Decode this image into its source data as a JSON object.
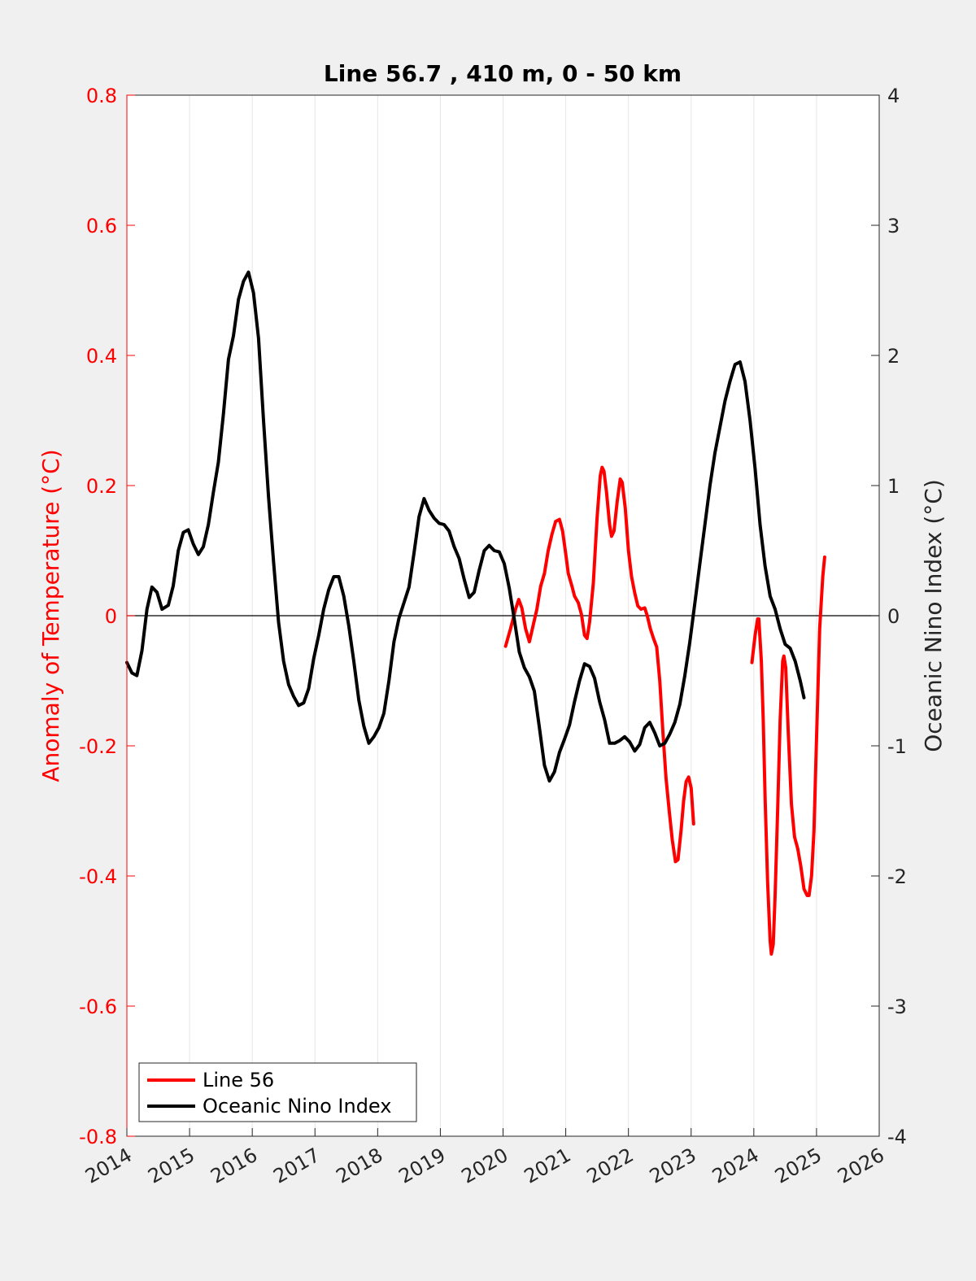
{
  "colors": {
    "figure_background": "#f0f0f0",
    "axes_background": "#ffffff",
    "line56": "#ff0000",
    "oni": "#000000",
    "left_axis": "#ff0000",
    "right_axis": "#262626",
    "grid": "#e6e6e6"
  },
  "chart_data": {
    "type": "line",
    "title": "Line 56.7 , 410 m, 0 - 50 km",
    "xlabel": "",
    "ylabel_left": "Anomaly of Temperature (°C)",
    "ylabel_right": "Oceanic Nino Index (°C)",
    "xlim": [
      2014,
      2026
    ],
    "ylim_left": [
      -0.8,
      0.8
    ],
    "ylim_right": [
      -4,
      4
    ],
    "x_ticks": [
      2014,
      2015,
      2016,
      2017,
      2018,
      2019,
      2020,
      2021,
      2022,
      2023,
      2024,
      2025,
      2026
    ],
    "y_ticks_left": [
      "0.8",
      "0.6",
      "0.4",
      "0.2",
      "0",
      "-0.2",
      "-0.4",
      "-0.6",
      "-0.8"
    ],
    "y_ticks_right": [
      "4",
      "3",
      "2",
      "1",
      "0",
      "-1",
      "-2",
      "-3",
      "-4"
    ],
    "vertical_grid": true,
    "zero_line": true,
    "legend": {
      "placement": "bottom-left",
      "entries": [
        "Line 56",
        "Oceanic Nino Index"
      ]
    },
    "series": [
      {
        "name": "Line 56",
        "axis": "left",
        "color": "#ff0000",
        "segments": [
          [
            [
              2020.04,
              -0.047
            ],
            [
              2020.12,
              -0.02
            ],
            [
              2020.2,
              0.01
            ],
            [
              2020.25,
              0.025
            ],
            [
              2020.3,
              0.012
            ],
            [
              2020.36,
              -0.02
            ],
            [
              2020.42,
              -0.04
            ],
            [
              2020.48,
              -0.015
            ],
            [
              2020.54,
              0.01
            ],
            [
              2020.6,
              0.045
            ],
            [
              2020.66,
              0.065
            ],
            [
              2020.72,
              0.1
            ],
            [
              2020.78,
              0.125
            ],
            [
              2020.84,
              0.145
            ],
            [
              2020.9,
              0.148
            ],
            [
              2020.95,
              0.13
            ],
            [
              2021.0,
              0.095
            ],
            [
              2021.04,
              0.065
            ],
            [
              2021.1,
              0.045
            ],
            [
              2021.14,
              0.03
            ],
            [
              2021.2,
              0.02
            ],
            [
              2021.25,
              0.002
            ],
            [
              2021.3,
              -0.03
            ],
            [
              2021.34,
              -0.035
            ],
            [
              2021.38,
              -0.01
            ],
            [
              2021.44,
              0.05
            ],
            [
              2021.5,
              0.15
            ],
            [
              2021.55,
              0.215
            ],
            [
              2021.58,
              0.228
            ],
            [
              2021.61,
              0.222
            ],
            [
              2021.65,
              0.19
            ],
            [
              2021.7,
              0.14
            ],
            [
              2021.73,
              0.122
            ],
            [
              2021.77,
              0.13
            ],
            [
              2021.82,
              0.175
            ],
            [
              2021.87,
              0.21
            ],
            [
              2021.9,
              0.205
            ],
            [
              2021.95,
              0.165
            ],
            [
              2022.0,
              0.1
            ],
            [
              2022.05,
              0.06
            ],
            [
              2022.1,
              0.035
            ],
            [
              2022.15,
              0.015
            ],
            [
              2022.2,
              0.01
            ],
            [
              2022.26,
              0.012
            ],
            [
              2022.3,
              0.0
            ],
            [
              2022.35,
              -0.02
            ],
            [
              2022.4,
              -0.035
            ],
            [
              2022.45,
              -0.048
            ],
            [
              2022.5,
              -0.1
            ],
            [
              2022.55,
              -0.18
            ],
            [
              2022.6,
              -0.25
            ],
            [
              2022.65,
              -0.3
            ],
            [
              2022.7,
              -0.345
            ],
            [
              2022.75,
              -0.378
            ],
            [
              2022.79,
              -0.375
            ],
            [
              2022.84,
              -0.33
            ],
            [
              2022.88,
              -0.285
            ],
            [
              2022.92,
              -0.255
            ],
            [
              2022.96,
              -0.248
            ],
            [
              2023.0,
              -0.265
            ],
            [
              2023.04,
              -0.32
            ]
          ],
          [
            [
              2023.97,
              -0.072
            ],
            [
              2024.02,
              -0.03
            ],
            [
              2024.06,
              -0.005
            ],
            [
              2024.08,
              -0.005
            ],
            [
              2024.12,
              -0.07
            ],
            [
              2024.15,
              -0.16
            ],
            [
              2024.18,
              -0.28
            ],
            [
              2024.22,
              -0.41
            ],
            [
              2024.26,
              -0.5
            ],
            [
              2024.28,
              -0.52
            ],
            [
              2024.31,
              -0.505
            ],
            [
              2024.34,
              -0.43
            ],
            [
              2024.38,
              -0.3
            ],
            [
              2024.42,
              -0.16
            ],
            [
              2024.46,
              -0.07
            ],
            [
              2024.48,
              -0.062
            ],
            [
              2024.51,
              -0.08
            ],
            [
              2024.55,
              -0.18
            ],
            [
              2024.6,
              -0.29
            ],
            [
              2024.65,
              -0.34
            ],
            [
              2024.7,
              -0.358
            ],
            [
              2024.75,
              -0.385
            ],
            [
              2024.8,
              -0.42
            ],
            [
              2024.85,
              -0.43
            ],
            [
              2024.88,
              -0.43
            ],
            [
              2024.92,
              -0.4
            ],
            [
              2024.96,
              -0.33
            ],
            [
              2025.0,
              -0.19
            ],
            [
              2025.05,
              -0.02
            ],
            [
              2025.1,
              0.06
            ],
            [
              2025.13,
              0.09
            ]
          ]
        ]
      },
      {
        "name": "Oceanic Nino Index",
        "axis": "right",
        "color": "#000000",
        "values": [
          [
            2014.0,
            -0.36
          ],
          [
            2014.08,
            -0.44
          ],
          [
            2014.16,
            -0.46
          ],
          [
            2014.24,
            -0.27
          ],
          [
            2014.32,
            0.05
          ],
          [
            2014.4,
            0.22
          ],
          [
            2014.48,
            0.18
          ],
          [
            2014.56,
            0.05
          ],
          [
            2014.66,
            0.08
          ],
          [
            2014.74,
            0.23
          ],
          [
            2014.82,
            0.5
          ],
          [
            2014.9,
            0.64
          ],
          [
            2014.98,
            0.66
          ],
          [
            2015.06,
            0.55
          ],
          [
            2015.14,
            0.47
          ],
          [
            2015.22,
            0.53
          ],
          [
            2015.3,
            0.7
          ],
          [
            2015.38,
            0.95
          ],
          [
            2015.46,
            1.18
          ],
          [
            2015.54,
            1.55
          ],
          [
            2015.62,
            1.97
          ],
          [
            2015.7,
            2.15
          ],
          [
            2015.78,
            2.43
          ],
          [
            2015.86,
            2.57
          ],
          [
            2015.94,
            2.64
          ],
          [
            2016.02,
            2.48
          ],
          [
            2016.1,
            2.13
          ],
          [
            2016.18,
            1.5
          ],
          [
            2016.26,
            0.91
          ],
          [
            2016.34,
            0.41
          ],
          [
            2016.42,
            -0.05
          ],
          [
            2016.5,
            -0.35
          ],
          [
            2016.58,
            -0.53
          ],
          [
            2016.66,
            -0.62
          ],
          [
            2016.74,
            -0.69
          ],
          [
            2016.82,
            -0.67
          ],
          [
            2016.9,
            -0.56
          ],
          [
            2016.98,
            -0.33
          ],
          [
            2017.06,
            -0.15
          ],
          [
            2017.14,
            0.05
          ],
          [
            2017.22,
            0.2
          ],
          [
            2017.3,
            0.3
          ],
          [
            2017.38,
            0.3
          ],
          [
            2017.46,
            0.15
          ],
          [
            2017.54,
            -0.08
          ],
          [
            2017.62,
            -0.35
          ],
          [
            2017.7,
            -0.65
          ],
          [
            2017.78,
            -0.85
          ],
          [
            2017.86,
            -0.98
          ],
          [
            2017.94,
            -0.93
          ],
          [
            2018.02,
            -0.86
          ],
          [
            2018.1,
            -0.75
          ],
          [
            2018.18,
            -0.5
          ],
          [
            2018.26,
            -0.2
          ],
          [
            2018.34,
            -0.02
          ],
          [
            2018.42,
            0.1
          ],
          [
            2018.5,
            0.22
          ],
          [
            2018.58,
            0.48
          ],
          [
            2018.66,
            0.76
          ],
          [
            2018.74,
            0.9
          ],
          [
            2018.82,
            0.81
          ],
          [
            2018.9,
            0.75
          ],
          [
            2018.98,
            0.71
          ],
          [
            2019.06,
            0.7
          ],
          [
            2019.14,
            0.65
          ],
          [
            2019.22,
            0.53
          ],
          [
            2019.3,
            0.44
          ],
          [
            2019.38,
            0.28
          ],
          [
            2019.46,
            0.14
          ],
          [
            2019.54,
            0.18
          ],
          [
            2019.62,
            0.35
          ],
          [
            2019.7,
            0.5
          ],
          [
            2019.78,
            0.54
          ],
          [
            2019.86,
            0.5
          ],
          [
            2019.94,
            0.49
          ],
          [
            2020.02,
            0.4
          ],
          [
            2020.1,
            0.21
          ],
          [
            2020.18,
            -0.03
          ],
          [
            2020.26,
            -0.28
          ],
          [
            2020.34,
            -0.4
          ],
          [
            2020.42,
            -0.47
          ],
          [
            2020.5,
            -0.58
          ],
          [
            2020.58,
            -0.86
          ],
          [
            2020.66,
            -1.15
          ],
          [
            2020.74,
            -1.27
          ],
          [
            2020.82,
            -1.2
          ],
          [
            2020.9,
            -1.05
          ],
          [
            2020.98,
            -0.95
          ],
          [
            2021.06,
            -0.84
          ],
          [
            2021.14,
            -0.66
          ],
          [
            2021.22,
            -0.5
          ],
          [
            2021.3,
            -0.37
          ],
          [
            2021.38,
            -0.39
          ],
          [
            2021.46,
            -0.48
          ],
          [
            2021.54,
            -0.66
          ],
          [
            2021.62,
            -0.8
          ],
          [
            2021.7,
            -0.98
          ],
          [
            2021.78,
            -0.98
          ],
          [
            2021.86,
            -0.96
          ],
          [
            2021.94,
            -0.93
          ],
          [
            2022.02,
            -0.97
          ],
          [
            2022.1,
            -1.04
          ],
          [
            2022.18,
            -0.99
          ],
          [
            2022.26,
            -0.86
          ],
          [
            2022.34,
            -0.82
          ],
          [
            2022.42,
            -0.9
          ],
          [
            2022.5,
            -1.0
          ],
          [
            2022.58,
            -0.98
          ],
          [
            2022.66,
            -0.91
          ],
          [
            2022.74,
            -0.82
          ],
          [
            2022.82,
            -0.68
          ],
          [
            2022.9,
            -0.46
          ],
          [
            2022.98,
            -0.2
          ],
          [
            2023.06,
            0.1
          ],
          [
            2023.14,
            0.4
          ],
          [
            2023.22,
            0.7
          ],
          [
            2023.3,
            1.0
          ],
          [
            2023.38,
            1.25
          ],
          [
            2023.46,
            1.45
          ],
          [
            2023.54,
            1.65
          ],
          [
            2023.62,
            1.8
          ],
          [
            2023.7,
            1.93
          ],
          [
            2023.78,
            1.95
          ],
          [
            2023.86,
            1.8
          ],
          [
            2023.94,
            1.5
          ],
          [
            2024.02,
            1.13
          ],
          [
            2024.1,
            0.7
          ],
          [
            2024.18,
            0.38
          ],
          [
            2024.26,
            0.15
          ],
          [
            2024.34,
            0.05
          ],
          [
            2024.42,
            -0.1
          ],
          [
            2024.5,
            -0.22
          ],
          [
            2024.58,
            -0.25
          ],
          [
            2024.66,
            -0.35
          ],
          [
            2024.74,
            -0.5
          ],
          [
            2024.8,
            -0.63
          ]
        ]
      }
    ]
  }
}
